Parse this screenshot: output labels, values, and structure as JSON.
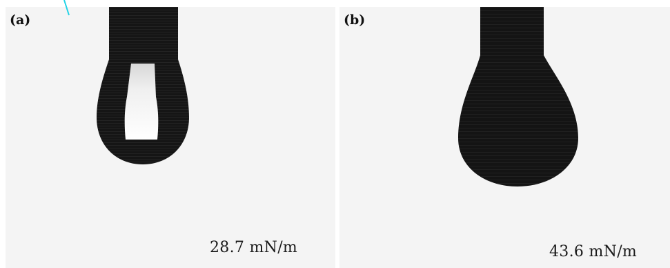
{
  "panels": [
    {
      "label": "(a)",
      "surface_tension": "28.7 mN/m",
      "drop_color": "#151515",
      "highlight_color": "#ffffff"
    },
    {
      "label": "(b)",
      "surface_tension": "43.6 mN/m",
      "drop_color": "#141414"
    }
  ],
  "colors": {
    "background": "#f4f4f4",
    "accent_mark": "#22d3e6"
  }
}
